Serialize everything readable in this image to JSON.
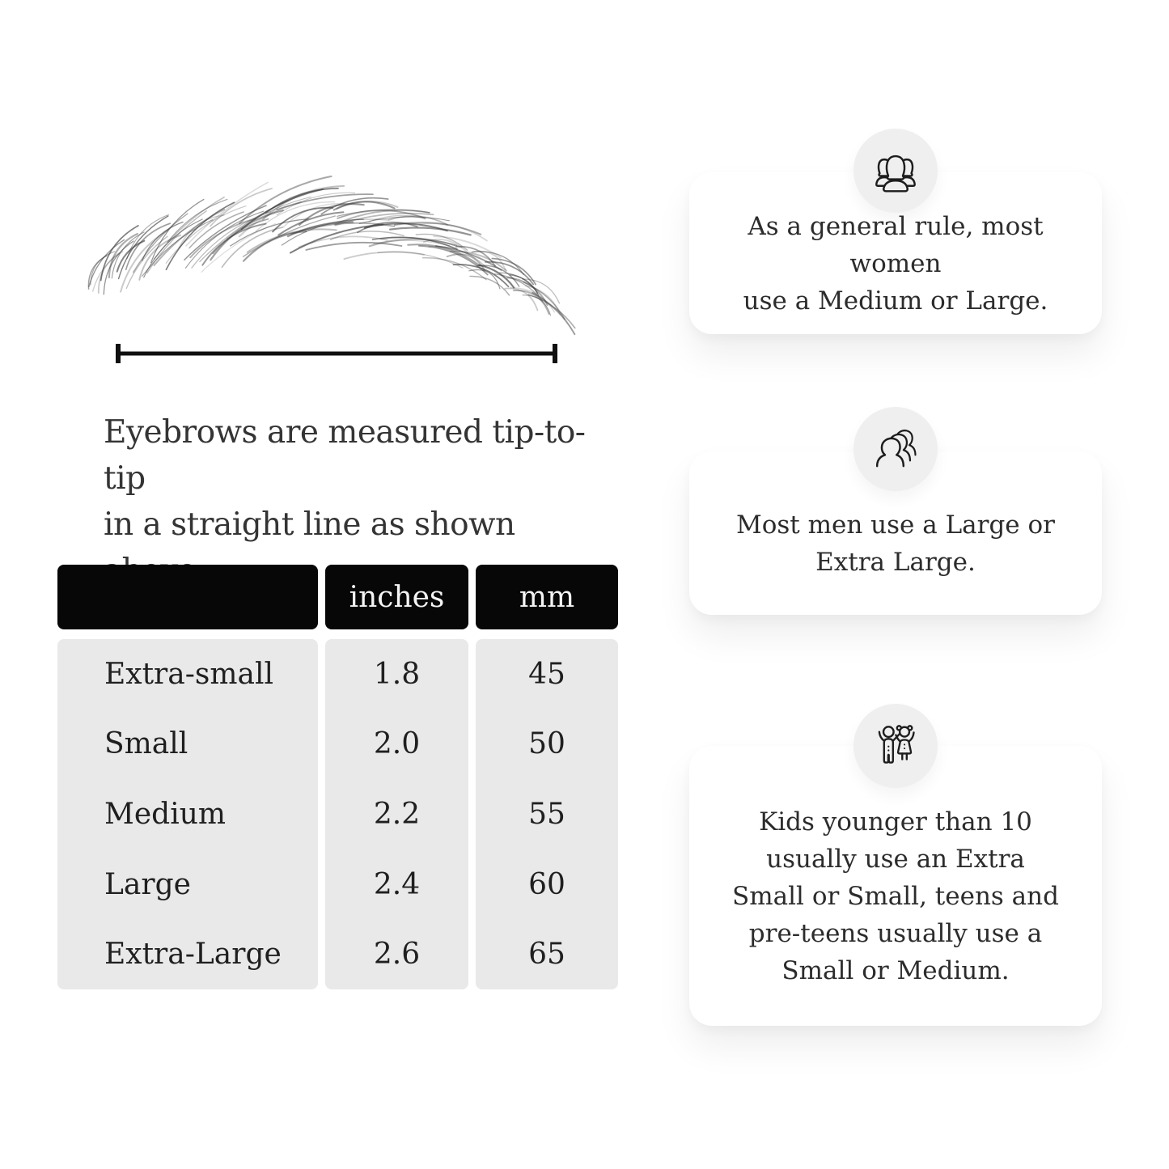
{
  "figure": {
    "caption_lines": [
      "Eyebrows are measured tip-to-tip",
      "in a straight line as shown above."
    ]
  },
  "table": {
    "columns": [
      "",
      "inches",
      "mm"
    ],
    "rows": [
      {
        "label": "Extra-small",
        "inches": "1.8",
        "mm": "45"
      },
      {
        "label": "Small",
        "inches": "2.0",
        "mm": "50"
      },
      {
        "label": "Medium",
        "inches": "2.2",
        "mm": "55"
      },
      {
        "label": "Large",
        "inches": "2.4",
        "mm": "60"
      },
      {
        "label": "Extra-Large",
        "inches": "2.6",
        "mm": "65"
      }
    ]
  },
  "cards": [
    {
      "icon": "women-group-icon",
      "lines": [
        "As a general rule, most women",
        "use a Medium or Large."
      ]
    },
    {
      "icon": "men-group-icon",
      "lines": [
        "Most men use a Large or",
        "Extra Large."
      ]
    },
    {
      "icon": "kids-icon",
      "lines": [
        "Kids younger than 10",
        "usually use an Extra",
        "Small or Small, teens and",
        "pre-teens usually use a",
        "Small or Medium."
      ]
    }
  ],
  "colors": {
    "table_header_bg": "#070707",
    "table_header_text": "#f4f4f4",
    "table_body_bg": "#e9e9e9",
    "card_bg": "#ffffff",
    "icon_circle_bg": "#efefef",
    "icon_stroke": "#1d1d1d",
    "line_color": "#101010",
    "text_color": "#2c2c2c"
  }
}
